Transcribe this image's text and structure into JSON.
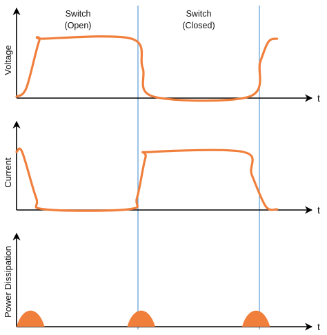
{
  "header": {
    "left_line1": "Switch",
    "left_line2": "(Open)",
    "right_line1": "Switch",
    "right_line2": "(Closed)"
  },
  "panels": {
    "voltage": {
      "ylabel": "Voltage",
      "xlabel": "t"
    },
    "current": {
      "ylabel": "Current",
      "xlabel": "t"
    },
    "power": {
      "ylabel": "Power Dissipation",
      "xlabel": "t"
    }
  },
  "colors": {
    "waveform": "#f07f3c",
    "divider": "#5b9bd5",
    "axis": "#000000"
  },
  "chart_data": {
    "type": "line",
    "x_range": [
      0,
      10
    ],
    "switch_transitions_x": [
      4.0,
      8.0
    ],
    "series": [
      {
        "name": "Voltage",
        "levels": {
          "low": 0,
          "high": 1
        },
        "points": [
          [
            0,
            0
          ],
          [
            0.35,
            0.15
          ],
          [
            0.8,
            0.95
          ],
          [
            1.0,
            1
          ],
          [
            4.1,
            1
          ],
          [
            4.5,
            0.5
          ],
          [
            4.9,
            0
          ],
          [
            8.3,
            0
          ],
          [
            8.7,
            0.6
          ],
          [
            9.0,
            0.95
          ],
          [
            9.3,
            1
          ]
        ]
      },
      {
        "name": "Current",
        "levels": {
          "low": 0,
          "high": 1
        },
        "points": [
          [
            0,
            1
          ],
          [
            0.2,
            1
          ],
          [
            0.7,
            0.2
          ],
          [
            1.0,
            0
          ],
          [
            4.0,
            0
          ],
          [
            4.3,
            0.2
          ],
          [
            4.6,
            0.9
          ],
          [
            4.8,
            1
          ],
          [
            8.1,
            1
          ],
          [
            8.4,
            0.6
          ],
          [
            8.9,
            0.05
          ],
          [
            9.3,
            0
          ]
        ]
      },
      {
        "name": "Power Dissipation",
        "pulses_center_x": [
          0.5,
          4.45,
          8.55
        ],
        "pulse_width": 1.0,
        "pulse_peak": 1
      }
    ]
  }
}
